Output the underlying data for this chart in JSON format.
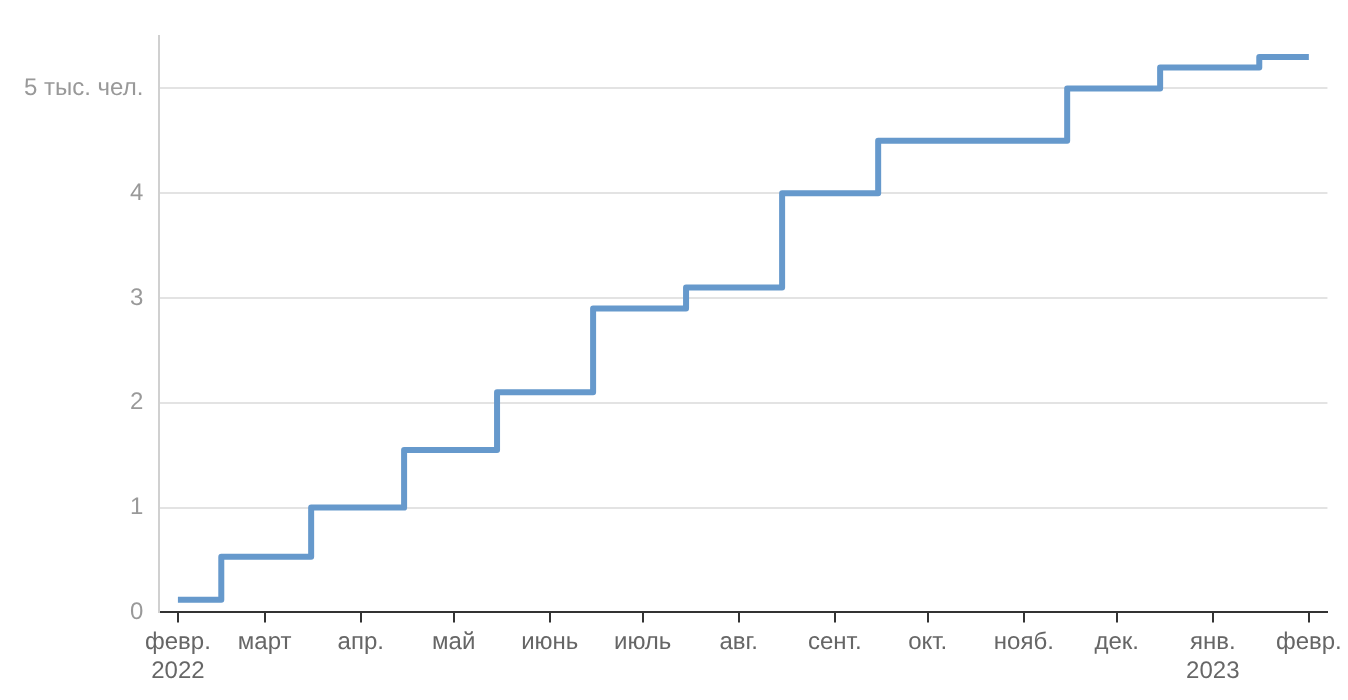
{
  "chart_data": {
    "type": "step",
    "x": [
      "2022-02-01",
      "2022-02-15",
      "2022-03-16",
      "2022-04-15",
      "2022-05-15",
      "2022-06-15",
      "2022-07-15",
      "2022-08-15",
      "2022-09-15",
      "2022-11-15",
      "2022-12-15",
      "2023-01-16",
      "2023-02-01"
    ],
    "series": [
      {
        "color": "#6699cc",
        "values": [
          0.12,
          0.53,
          1.0,
          1.55,
          2.1,
          2.9,
          3.1,
          4.0,
          4.5,
          5.0,
          5.2,
          5.3,
          5.3
        ]
      }
    ],
    "xlim": [
      "2022-01-26",
      "2023-02-07"
    ],
    "xticks": [
      {
        "value": "2022-02-01",
        "label": "февр.\n2022"
      },
      {
        "value": "2022-03-01",
        "label": "март"
      },
      {
        "value": "2022-04-01",
        "label": "апр."
      },
      {
        "value": "2022-05-01",
        "label": "май"
      },
      {
        "value": "2022-06-01",
        "label": "июнь"
      },
      {
        "value": "2022-07-01",
        "label": "июль"
      },
      {
        "value": "2022-08-01",
        "label": "авг."
      },
      {
        "value": "2022-09-01",
        "label": "сент."
      },
      {
        "value": "2022-10-01",
        "label": "окт."
      },
      {
        "value": "2022-11-01",
        "label": "нояб."
      },
      {
        "value": "2022-12-01",
        "label": "дек."
      },
      {
        "value": "2023-01-01",
        "label": "янв.\n2023"
      },
      {
        "value": "2023-02-01",
        "label": "февр."
      }
    ],
    "ylim": [
      0,
      5.5
    ],
    "yticks": [
      0,
      1,
      2,
      3,
      4,
      {
        "value": 5,
        "label": "5 тыс. чел."
      }
    ],
    "grid": "y",
    "legend": false,
    "marker": "none",
    "line_style": "solid"
  }
}
